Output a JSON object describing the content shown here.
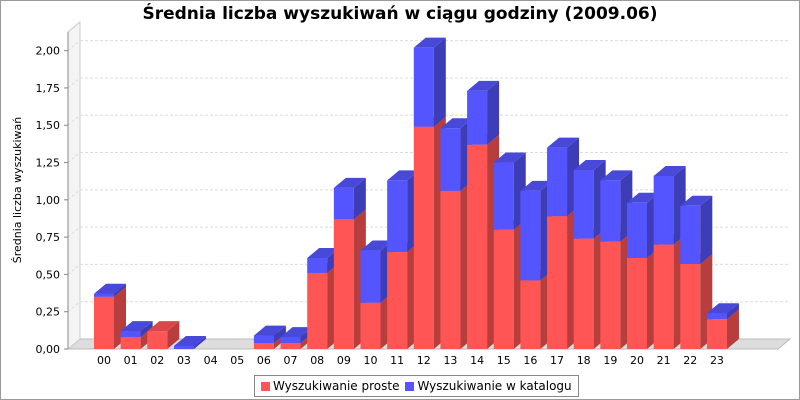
{
  "colors": {
    "series_simple": "#ff5555",
    "series_catalog": "#5555ff",
    "grid": "#dcdcdc",
    "axis": "#888888",
    "floor": "#dddddd"
  },
  "chart_data": {
    "type": "bar",
    "stacked": true,
    "three_d": true,
    "title": "Średnia liczba wyszukiwań w ciągu godziny (2009.06)",
    "xlabel": "",
    "ylabel": "Średnia liczba wyszukiwań",
    "ylim": [
      0,
      2.125
    ],
    "yticks": [
      "0,00",
      "0,25",
      "0,50",
      "0,75",
      "1,00",
      "1,25",
      "1,50",
      "1,75",
      "2,00"
    ],
    "grid": true,
    "legend_position": "bottom",
    "categories": [
      "00",
      "01",
      "02",
      "03",
      "04",
      "05",
      "06",
      "07",
      "08",
      "09",
      "10",
      "11",
      "12",
      "13",
      "14",
      "15",
      "16",
      "17",
      "18",
      "19",
      "20",
      "21",
      "22",
      "23"
    ],
    "series": [
      {
        "name": "Wyszukiwanie proste",
        "values": [
          0.35,
          0.08,
          0.12,
          0.0,
          0.0,
          0.0,
          0.04,
          0.04,
          0.51,
          0.87,
          0.31,
          0.65,
          1.49,
          1.06,
          1.37,
          0.8,
          0.46,
          0.89,
          0.74,
          0.72,
          0.61,
          0.7,
          0.57,
          0.2
        ]
      },
      {
        "name": "Wyszukiwanie w katalogu",
        "values": [
          0.02,
          0.04,
          0.0,
          0.02,
          0.0,
          0.0,
          0.05,
          0.04,
          0.1,
          0.21,
          0.35,
          0.48,
          0.53,
          0.42,
          0.36,
          0.45,
          0.6,
          0.46,
          0.46,
          0.41,
          0.37,
          0.46,
          0.39,
          0.04
        ]
      }
    ]
  }
}
